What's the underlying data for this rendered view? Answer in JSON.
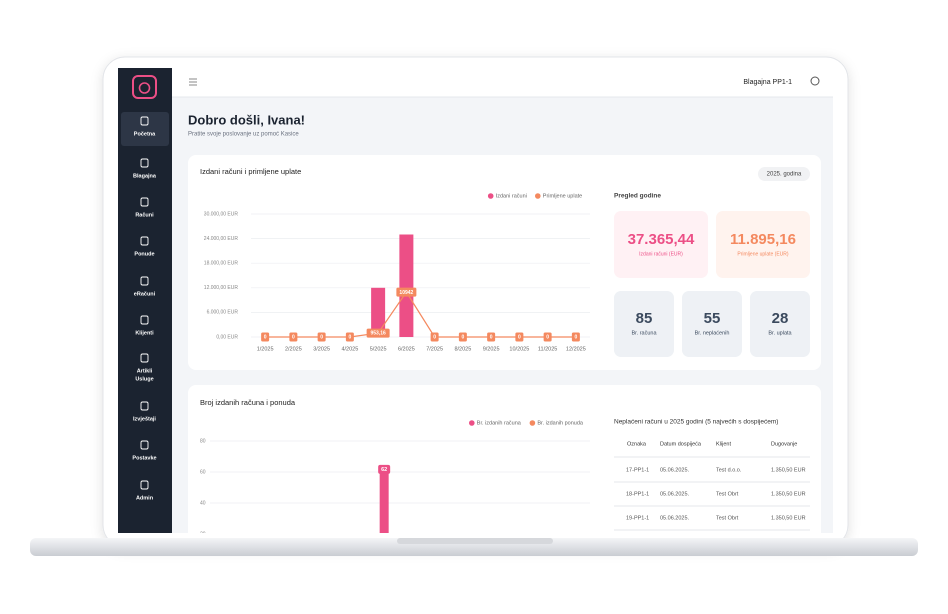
{
  "topbar": {
    "register": "Blagajna PP1-1"
  },
  "sidebar": {
    "items": [
      {
        "label": "Početna"
      },
      {
        "label": "Blagajna"
      },
      {
        "label": "Računi"
      },
      {
        "label": "Ponude"
      },
      {
        "label": "eRačuni"
      },
      {
        "label": "Klijenti"
      },
      {
        "label": [
          "Artikli",
          "Usluge"
        ]
      },
      {
        "label": "Izvještaji"
      },
      {
        "label": "Postavke"
      },
      {
        "label": "Admin"
      }
    ]
  },
  "header": {
    "title": "Dobro došli, Ivana!",
    "subtitle": "Pratite svoje poslovanje uz pomoć Kasice"
  },
  "overview": {
    "title": "Pregled godine",
    "kpis": [
      {
        "value": "37.365,44",
        "label": "Izdani računi (EUR)"
      },
      {
        "value": "11.895,16",
        "label": "Primljene uplate (EUR)"
      }
    ],
    "counts": [
      {
        "value": "85",
        "label": "Br. računa"
      },
      {
        "value": "55",
        "label": "Br. neplaćenih"
      },
      {
        "value": "28",
        "label": "Br. uplata"
      }
    ]
  },
  "chart_data": [
    {
      "type": "bar",
      "title": "Izdani računi i primljene uplate",
      "badge": "2025. godina",
      "categories": [
        "1/2025",
        "2/2025",
        "3/2025",
        "4/2025",
        "5/2025",
        "6/2025",
        "7/2025",
        "8/2025",
        "9/2025",
        "10/2025",
        "11/2025",
        "12/2025"
      ],
      "series": [
        {
          "name": "Izdani računi",
          "color": "#ec4f86",
          "values": [
            0,
            0,
            0,
            0,
            12000,
            25000,
            0,
            0,
            0,
            0,
            0,
            0
          ]
        },
        {
          "name": "Primljene uplate",
          "color": "#f4895f",
          "type": "line",
          "values": [
            0,
            0,
            0,
            0,
            953.16,
            10942,
            0,
            0,
            0,
            0,
            0,
            0
          ],
          "value_labels": [
            "0",
            "0",
            "0",
            "0",
            "953,16",
            "10942",
            "0",
            "0",
            "0",
            "0",
            "0",
            "0"
          ]
        }
      ],
      "ylim": [
        0,
        30000
      ],
      "yticks": [
        {
          "value": 0,
          "label": "0,00 EUR"
        },
        {
          "value": 6000,
          "label": "6.000,00 EUR"
        },
        {
          "value": 12000,
          "label": "12.000,00 EUR"
        },
        {
          "value": 18000,
          "label": "18.000,00 EUR"
        },
        {
          "value": 24000,
          "label": "24.000,00 EUR"
        },
        {
          "value": 30000,
          "label": "30.000,00 EUR"
        }
      ],
      "grid": true,
      "legend": "top-right"
    },
    {
      "type": "bar",
      "title": "Broj izdanih računa i ponuda",
      "series": [
        {
          "name": "Br. izdanih računa",
          "color": "#ec4f86",
          "values": [
            null,
            null,
            null,
            null,
            null,
            62,
            null,
            null,
            null,
            null,
            null,
            null
          ]
        },
        {
          "name": "Br. izdanih ponuda",
          "color": "#f4895f",
          "values": [
            null,
            null,
            null,
            null,
            null,
            null,
            null,
            null,
            null,
            null,
            null,
            null
          ]
        }
      ],
      "ylim": [
        0,
        80
      ],
      "yticks": [
        20,
        40,
        60,
        80
      ],
      "grid": true,
      "legend": "top-right"
    }
  ],
  "table": {
    "title": "Neplaćeni računi u 2025 godini (5 najvećih s dospijećem)",
    "header": [
      "Oznaka",
      "Datum dospijeća",
      "Klijent",
      "Dugovanje"
    ],
    "rows": [
      [
        "17-PP1-1",
        "05.06.2025.",
        "Test d.o.o.",
        "1.350,50 EUR"
      ],
      [
        "18-PP1-1",
        "05.06.2025.",
        "Test Obrt",
        "1.350,50 EUR"
      ],
      [
        "19-PP1-1",
        "05.06.2025.",
        "Test Obrt",
        "1.350,50 EUR"
      ]
    ]
  }
}
